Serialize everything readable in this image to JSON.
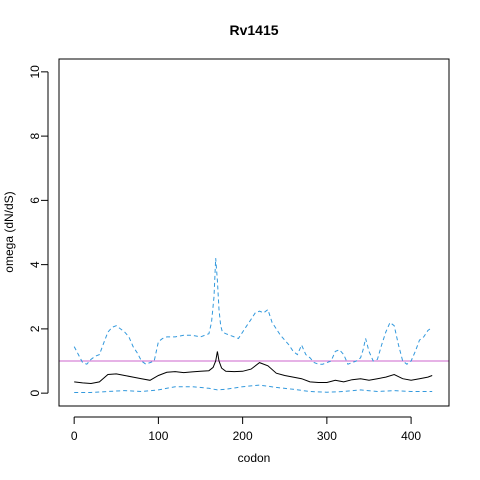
{
  "chart_data": {
    "type": "line",
    "title": "Rv1415",
    "xlabel": "codon",
    "ylabel": "omega (dN/dS)",
    "xlim": [
      -18,
      445
    ],
    "ylim": [
      -0.4,
      10.4
    ],
    "xticks": [
      0,
      100,
      200,
      300,
      400
    ],
    "yticks": [
      0,
      2,
      4,
      6,
      8,
      10
    ],
    "grid": false,
    "reference_line": {
      "y": 1,
      "color": "#CC66CC"
    },
    "colors": {
      "estimate": "#000000",
      "bounds": "#3399DD"
    },
    "series": [
      {
        "style": "solid",
        "x": [
          0,
          10,
          20,
          30,
          40,
          50,
          60,
          70,
          80,
          90,
          100,
          110,
          120,
          130,
          140,
          150,
          160,
          165,
          168,
          170,
          172,
          175,
          180,
          190,
          200,
          210,
          220,
          230,
          240,
          250,
          260,
          270,
          280,
          290,
          300,
          310,
          320,
          330,
          340,
          350,
          360,
          370,
          380,
          390,
          400,
          410,
          420,
          425
        ],
        "y": [
          0.35,
          0.32,
          0.3,
          0.35,
          0.58,
          0.6,
          0.55,
          0.5,
          0.45,
          0.4,
          0.55,
          0.65,
          0.67,
          0.64,
          0.66,
          0.68,
          0.7,
          0.8,
          1.0,
          1.3,
          1.0,
          0.78,
          0.68,
          0.67,
          0.68,
          0.75,
          0.95,
          0.85,
          0.62,
          0.55,
          0.5,
          0.45,
          0.35,
          0.33,
          0.33,
          0.4,
          0.35,
          0.42,
          0.45,
          0.4,
          0.45,
          0.5,
          0.58,
          0.45,
          0.4,
          0.45,
          0.5,
          0.55
        ]
      },
      {
        "style": "dashed",
        "x": [
          0,
          5,
          10,
          15,
          20,
          25,
          30,
          35,
          40,
          45,
          50,
          55,
          60,
          65,
          70,
          75,
          80,
          85,
          90,
          95,
          100,
          105,
          110,
          120,
          130,
          140,
          150,
          160,
          163,
          166,
          168,
          170,
          172,
          174,
          176,
          180,
          185,
          190,
          195,
          200,
          205,
          210,
          215,
          220,
          225,
          230,
          235,
          240,
          245,
          250,
          255,
          260,
          265,
          270,
          275,
          280,
          285,
          290,
          295,
          300,
          305,
          310,
          315,
          320,
          325,
          330,
          335,
          340,
          343,
          346,
          350,
          355,
          360,
          365,
          370,
          375,
          380,
          385,
          390,
          395,
          400,
          405,
          410,
          415,
          420,
          425
        ],
        "y": [
          1.45,
          1.2,
          0.95,
          0.9,
          1.05,
          1.15,
          1.2,
          1.55,
          1.9,
          2.05,
          2.1,
          2.0,
          1.9,
          1.75,
          1.45,
          1.25,
          1.0,
          0.9,
          0.95,
          1.0,
          1.6,
          1.7,
          1.75,
          1.75,
          1.8,
          1.8,
          1.75,
          1.85,
          2.2,
          3.0,
          4.2,
          3.5,
          2.6,
          2.1,
          1.9,
          1.85,
          1.8,
          1.75,
          1.7,
          1.9,
          2.1,
          2.3,
          2.5,
          2.55,
          2.5,
          2.6,
          2.2,
          2.0,
          1.8,
          1.65,
          1.5,
          1.3,
          1.2,
          1.5,
          1.2,
          1.1,
          0.95,
          0.9,
          0.9,
          0.95,
          1.0,
          1.3,
          1.35,
          1.2,
          0.9,
          0.95,
          1.0,
          1.1,
          1.35,
          1.7,
          1.3,
          1.0,
          1.05,
          1.5,
          1.9,
          2.2,
          2.1,
          1.5,
          1.0,
          0.9,
          1.0,
          1.3,
          1.65,
          1.75,
          1.95,
          2.05
        ]
      },
      {
        "style": "dashed",
        "x": [
          0,
          20,
          40,
          60,
          80,
          100,
          120,
          140,
          160,
          170,
          180,
          200,
          220,
          240,
          260,
          280,
          300,
          320,
          340,
          360,
          380,
          400,
          425
        ],
        "y": [
          0.02,
          0.02,
          0.05,
          0.08,
          0.05,
          0.1,
          0.2,
          0.2,
          0.15,
          0.1,
          0.12,
          0.2,
          0.25,
          0.18,
          0.12,
          0.05,
          0.03,
          0.05,
          0.1,
          0.05,
          0.08,
          0.05,
          0.05
        ]
      }
    ]
  }
}
